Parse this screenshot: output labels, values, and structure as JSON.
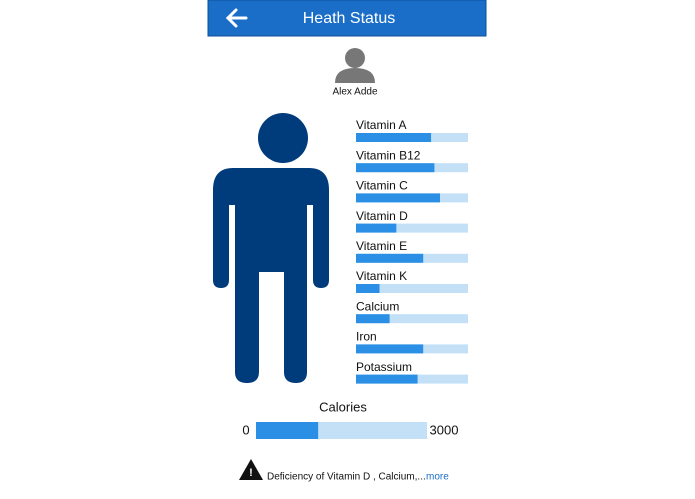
{
  "header": {
    "title": "Heath Status"
  },
  "profile": {
    "name": "Alex Adde"
  },
  "nutrients": {
    "max": 100,
    "color": "#2b8fe6",
    "track_color": "#c3e0f7",
    "items": [
      {
        "name": "Vitamin A",
        "value": 67
      },
      {
        "name": "Vitamin B12",
        "value": 70
      },
      {
        "name": "Vitamin C",
        "value": 75
      },
      {
        "name": "Vitamin D",
        "value": 36
      },
      {
        "name": "Vitamin E",
        "value": 60
      },
      {
        "name": "Vitamin K",
        "value": 21
      },
      {
        "name": "Calcium",
        "value": 30
      },
      {
        "name": "Iron",
        "value": 60
      },
      {
        "name": "Potassium",
        "value": 55
      }
    ]
  },
  "calories": {
    "label": "Calories",
    "min": 0,
    "max": 3000,
    "value": 1090
  },
  "warning": {
    "text": "Deficiency of  Vitamin D , Calcium,...",
    "link": "more"
  }
}
